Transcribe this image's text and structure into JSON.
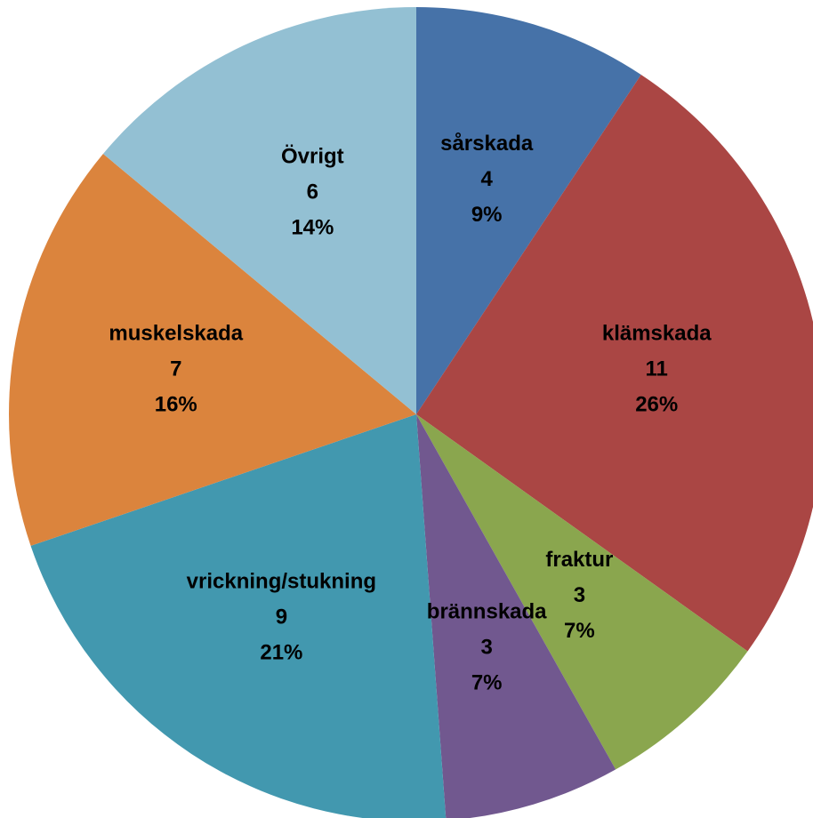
{
  "chart_data": {
    "type": "pie",
    "categories": [
      "sårskada",
      "klämskada",
      "fraktur",
      "brännskada",
      "vrickning/stukning",
      "muskelskada",
      "Övrigt"
    ],
    "values": [
      4,
      11,
      3,
      3,
      9,
      7,
      6
    ],
    "percent_labels": [
      "9%",
      "26%",
      "7%",
      "7%",
      "21%",
      "16%",
      "14%"
    ],
    "colors": [
      "#4672a8",
      "#aa4644",
      "#8aa64e",
      "#71588f",
      "#4298af",
      "#db843d",
      "#93c0d3"
    ]
  }
}
